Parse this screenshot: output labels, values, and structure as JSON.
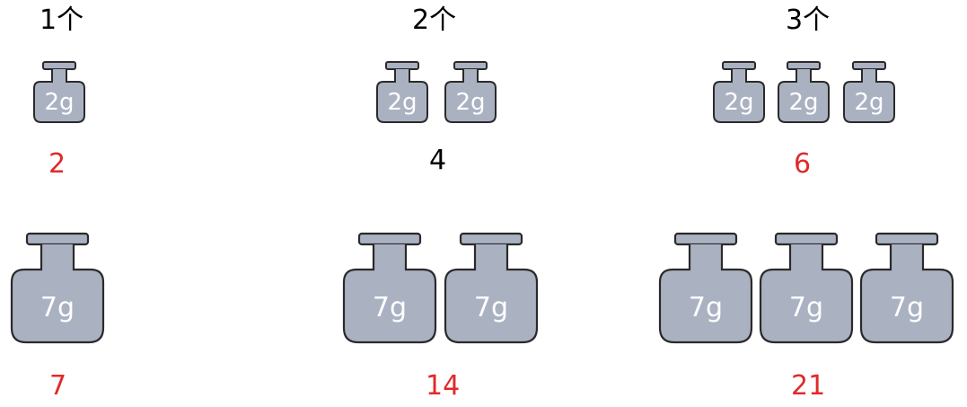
{
  "counts": [
    "1个",
    "2个",
    "3个"
  ],
  "small": {
    "label": "2g",
    "results": [
      "2",
      "4",
      "6"
    ]
  },
  "large": {
    "label": "7g",
    "results": [
      "7",
      "14",
      "21"
    ]
  },
  "colors": {
    "weight_fill": "#aab2c2",
    "weight_stroke": "#2a2a2a",
    "red": "#e02a2a",
    "black": "#000000"
  }
}
